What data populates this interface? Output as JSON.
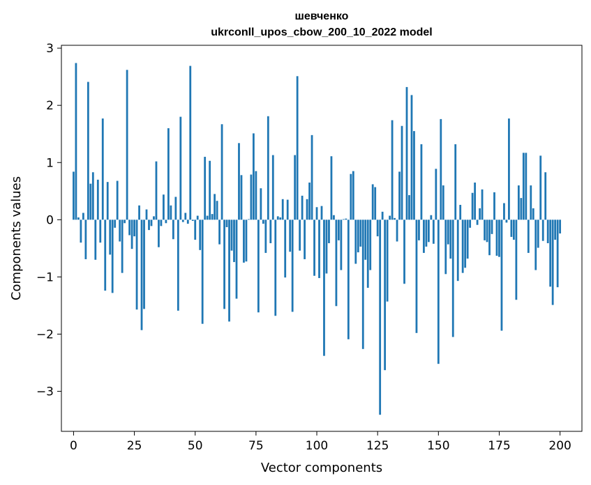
{
  "chart_data": {
    "type": "bar",
    "title_line1": "шевченко",
    "title_line2": "ukrconll_upos_cbow_200_10_2022 model",
    "xlabel": "Vector components",
    "ylabel": "Components values",
    "xlim": [
      -5,
      209
    ],
    "ylim": [
      -3.7,
      3.05
    ],
    "xticks": [
      0,
      25,
      50,
      75,
      100,
      125,
      150,
      175,
      200
    ],
    "yticks": [
      -3,
      -2,
      -1,
      0,
      1,
      2,
      3
    ],
    "ytick_labels": [
      "−3",
      "−2",
      "−1",
      "0",
      "1",
      "2",
      "3"
    ],
    "bar_color": "#1f77b4",
    "grid": false,
    "values": [
      0.84,
      2.74,
      0.04,
      -0.4,
      0.12,
      -0.69,
      2.41,
      0.63,
      0.83,
      -0.7,
      0.7,
      -0.4,
      1.77,
      -1.24,
      0.66,
      -0.61,
      -1.28,
      -0.14,
      0.68,
      -0.38,
      -0.93,
      -0.06,
      2.62,
      -0.27,
      -0.51,
      -0.29,
      -1.57,
      0.25,
      -1.93,
      -1.56,
      0.18,
      -0.18,
      -0.11,
      0.06,
      1.02,
      -0.48,
      -0.11,
      0.44,
      -0.06,
      1.6,
      0.25,
      -0.34,
      0.4,
      -1.59,
      1.8,
      -0.04,
      0.12,
      -0.07,
      2.69,
      -0.02,
      -0.35,
      0.07,
      -0.53,
      -1.82,
      1.1,
      0.07,
      1.03,
      0.1,
      0.45,
      0.33,
      -0.43,
      1.67,
      -1.56,
      -0.13,
      -1.78,
      -0.54,
      -0.74,
      -1.38,
      1.34,
      0.78,
      -0.75,
      -0.73,
      0.01,
      0.79,
      1.51,
      0.85,
      -1.62,
      0.55,
      -0.07,
      -0.58,
      1.81,
      -0.41,
      1.13,
      -1.68,
      0.06,
      0.04,
      0.36,
      -1.01,
      0.35,
      -0.56,
      -1.61,
      1.13,
      2.51,
      -0.54,
      0.42,
      -0.69,
      0.36,
      0.65,
      1.48,
      -0.98,
      0.22,
      -1.02,
      0.24,
      -2.38,
      -0.94,
      -0.41,
      1.11,
      0.08,
      -1.51,
      -0.36,
      -0.88,
      0.01,
      0.02,
      -2.09,
      0.8,
      0.85,
      -0.77,
      -0.57,
      -0.47,
      -2.26,
      -0.7,
      -1.19,
      -0.88,
      0.62,
      0.57,
      -0.29,
      -3.41,
      0.14,
      -2.63,
      -1.43,
      0.07,
      1.74,
      0.03,
      -0.38,
      0.84,
      1.64,
      -1.12,
      2.32,
      0.43,
      2.18,
      1.55,
      -1.98,
      -0.36,
      1.32,
      -0.58,
      -0.47,
      -0.39,
      0.08,
      -0.42,
      0.89,
      -2.52,
      1.76,
      0.6,
      -0.95,
      -0.43,
      -0.68,
      -2.05,
      1.32,
      -1.07,
      0.26,
      -0.93,
      -0.84,
      -0.68,
      -0.14,
      0.47,
      0.65,
      -0.09,
      0.2,
      0.53,
      -0.36,
      -0.39,
      -0.62,
      -0.25,
      0.48,
      -0.63,
      -0.65,
      -1.94,
      0.29,
      -0.05,
      1.77,
      -0.3,
      -0.35,
      -1.4,
      0.6,
      0.38,
      1.17,
      1.17,
      -0.58,
      0.6,
      0.2,
      -0.88,
      -0.49,
      1.12,
      -0.37,
      0.83,
      -0.41,
      -1.17,
      -1.49,
      -0.35,
      -1.18,
      -0.24
    ]
  }
}
